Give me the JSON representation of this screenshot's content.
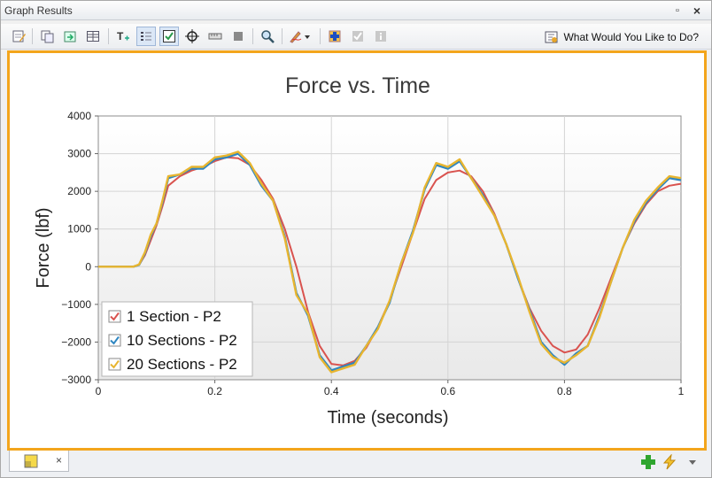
{
  "window": {
    "title": "Graph Results",
    "pin_glyph": "▫",
    "close_glyph": "×"
  },
  "toolbar": {
    "icons": [
      "edit-icon",
      "copy-icon",
      "export-icon",
      "table-icon",
      "text-annotation-icon",
      "legend-icon",
      "checkbox-icon",
      "crosshair-icon",
      "ruler-icon",
      "stop-icon",
      "zoom-icon",
      "pen-icon",
      "add-icon",
      "check-disabled-icon",
      "info-disabled-icon"
    ],
    "help_label": "What Would You Like to Do?"
  },
  "tab": {
    "close_glyph": "×"
  },
  "chart_data": {
    "type": "line",
    "title": "Force vs. Time",
    "xlabel": "Time (seconds)",
    "ylabel": "Force (lbf)",
    "xlim": [
      0,
      1
    ],
    "ylim": [
      -3000,
      4000
    ],
    "xticks": [
      "0",
      "0.2",
      "0.4",
      "0.6",
      "0.8",
      "1"
    ],
    "yticks": [
      "4000",
      "3000",
      "2000",
      "1000",
      "0",
      "−1000",
      "−2000",
      "−3000"
    ],
    "grid": true,
    "legend_position": "bottom-left",
    "series": [
      {
        "name": "1 Section - P2",
        "color": "#d9534f",
        "x": [
          0,
          0.06,
          0.07,
          0.08,
          0.09,
          0.1,
          0.11,
          0.12,
          0.14,
          0.16,
          0.18,
          0.2,
          0.22,
          0.24,
          0.26,
          0.28,
          0.3,
          0.32,
          0.34,
          0.36,
          0.38,
          0.4,
          0.42,
          0.44,
          0.46,
          0.48,
          0.5,
          0.52,
          0.54,
          0.56,
          0.58,
          0.6,
          0.62,
          0.64,
          0.66,
          0.68,
          0.7,
          0.72,
          0.74,
          0.76,
          0.78,
          0.8,
          0.82,
          0.84,
          0.86,
          0.88,
          0.9,
          0.92,
          0.94,
          0.96,
          0.98,
          1.0
        ],
        "y": [
          0,
          0,
          50,
          300,
          700,
          1100,
          1600,
          2150,
          2400,
          2550,
          2650,
          2800,
          2900,
          2880,
          2700,
          2300,
          1800,
          1000,
          0,
          -1200,
          -2100,
          -2580,
          -2620,
          -2500,
          -2150,
          -1600,
          -900,
          0,
          900,
          1800,
          2300,
          2500,
          2550,
          2400,
          2000,
          1400,
          600,
          -300,
          -1100,
          -1700,
          -2100,
          -2280,
          -2200,
          -1800,
          -1100,
          -300,
          500,
          1150,
          1650,
          2000,
          2150,
          2200
        ]
      },
      {
        "name": "10 Sections - P2",
        "color": "#2e86c1",
        "x": [
          0,
          0.06,
          0.07,
          0.08,
          0.09,
          0.1,
          0.11,
          0.12,
          0.14,
          0.16,
          0.18,
          0.2,
          0.22,
          0.24,
          0.26,
          0.28,
          0.3,
          0.32,
          0.34,
          0.36,
          0.38,
          0.4,
          0.42,
          0.44,
          0.46,
          0.48,
          0.5,
          0.52,
          0.54,
          0.56,
          0.58,
          0.6,
          0.62,
          0.64,
          0.66,
          0.68,
          0.7,
          0.72,
          0.74,
          0.76,
          0.78,
          0.8,
          0.82,
          0.84,
          0.86,
          0.88,
          0.9,
          0.92,
          0.94,
          0.96,
          0.98,
          1.0
        ],
        "y": [
          0,
          0,
          50,
          350,
          800,
          1150,
          1700,
          2350,
          2450,
          2600,
          2600,
          2850,
          2900,
          3000,
          2700,
          2150,
          1750,
          800,
          -700,
          -1300,
          -2350,
          -2750,
          -2650,
          -2550,
          -2100,
          -1600,
          -950,
          100,
          950,
          2050,
          2700,
          2600,
          2800,
          2350,
          1900,
          1350,
          600,
          -300,
          -1150,
          -2000,
          -2350,
          -2600,
          -2300,
          -2100,
          -1300,
          -400,
          500,
          1200,
          1700,
          2050,
          2350,
          2300
        ]
      },
      {
        "name": "20 Sections - P2",
        "color": "#e8b52f",
        "x": [
          0,
          0.06,
          0.07,
          0.08,
          0.09,
          0.1,
          0.11,
          0.12,
          0.14,
          0.16,
          0.18,
          0.2,
          0.22,
          0.24,
          0.26,
          0.28,
          0.3,
          0.32,
          0.34,
          0.36,
          0.38,
          0.4,
          0.42,
          0.44,
          0.46,
          0.48,
          0.5,
          0.52,
          0.54,
          0.56,
          0.58,
          0.6,
          0.62,
          0.64,
          0.66,
          0.68,
          0.7,
          0.72,
          0.74,
          0.76,
          0.78,
          0.8,
          0.82,
          0.84,
          0.86,
          0.88,
          0.9,
          0.92,
          0.94,
          0.96,
          0.98,
          1.0
        ],
        "y": [
          0,
          0,
          60,
          380,
          850,
          1150,
          1750,
          2400,
          2450,
          2650,
          2650,
          2900,
          2950,
          3050,
          2750,
          2200,
          1750,
          750,
          -750,
          -1250,
          -2400,
          -2800,
          -2700,
          -2600,
          -2100,
          -1650,
          -900,
          100,
          900,
          2100,
          2750,
          2650,
          2850,
          2350,
          1850,
          1350,
          600,
          -250,
          -1200,
          -2050,
          -2400,
          -2550,
          -2350,
          -2100,
          -1350,
          -400,
          500,
          1250,
          1750,
          2100,
          2400,
          2350
        ]
      }
    ]
  }
}
